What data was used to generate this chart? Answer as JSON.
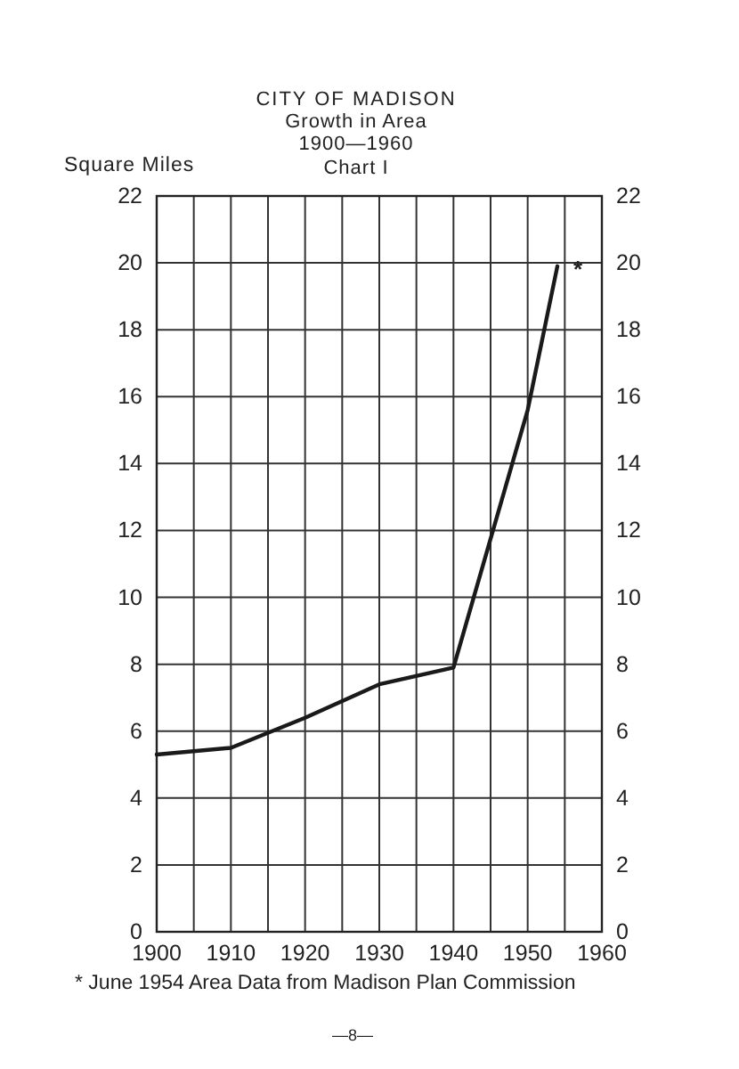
{
  "chart_data": {
    "type": "line",
    "title": "CITY OF MADISON",
    "subtitle": "Growth in Area\n1900—1960\nChart I",
    "ylabel": "Square Miles",
    "x": [
      1900,
      1910,
      1920,
      1930,
      1940,
      1950,
      1954
    ],
    "series": [
      {
        "color": "#1a1a1a",
        "values": [
          5.3,
          5.5,
          6.4,
          7.4,
          7.9,
          15.6,
          19.9
        ]
      }
    ],
    "xlim": [
      1900,
      1960
    ],
    "xticks": [
      1900,
      {
        "value": 1905,
        "label": null
      },
      1910,
      {
        "value": 1915,
        "label": null
      },
      1920,
      {
        "value": 1925,
        "label": null
      },
      1930,
      {
        "value": 1935,
        "label": null
      },
      1940,
      {
        "value": 1945,
        "label": null
      },
      1950,
      {
        "value": 1955,
        "label": null
      },
      1960
    ],
    "ylim": [
      0,
      22
    ],
    "yticks": [
      0,
      2,
      4,
      6,
      8,
      10,
      12,
      14,
      16,
      18,
      20,
      22
    ],
    "y2lim": [
      0,
      22
    ],
    "y2ticks": [
      0,
      2,
      4,
      6,
      8,
      10,
      12,
      14,
      16,
      18,
      20,
      22
    ],
    "grid": true,
    "marker": "none",
    "line_style": "solid",
    "annotations": [
      {
        "text": "*",
        "x": 1954,
        "y": 19.9
      },
      "* June 1954  Area Data from Madison Plan Commission",
      "—8—"
    ]
  }
}
